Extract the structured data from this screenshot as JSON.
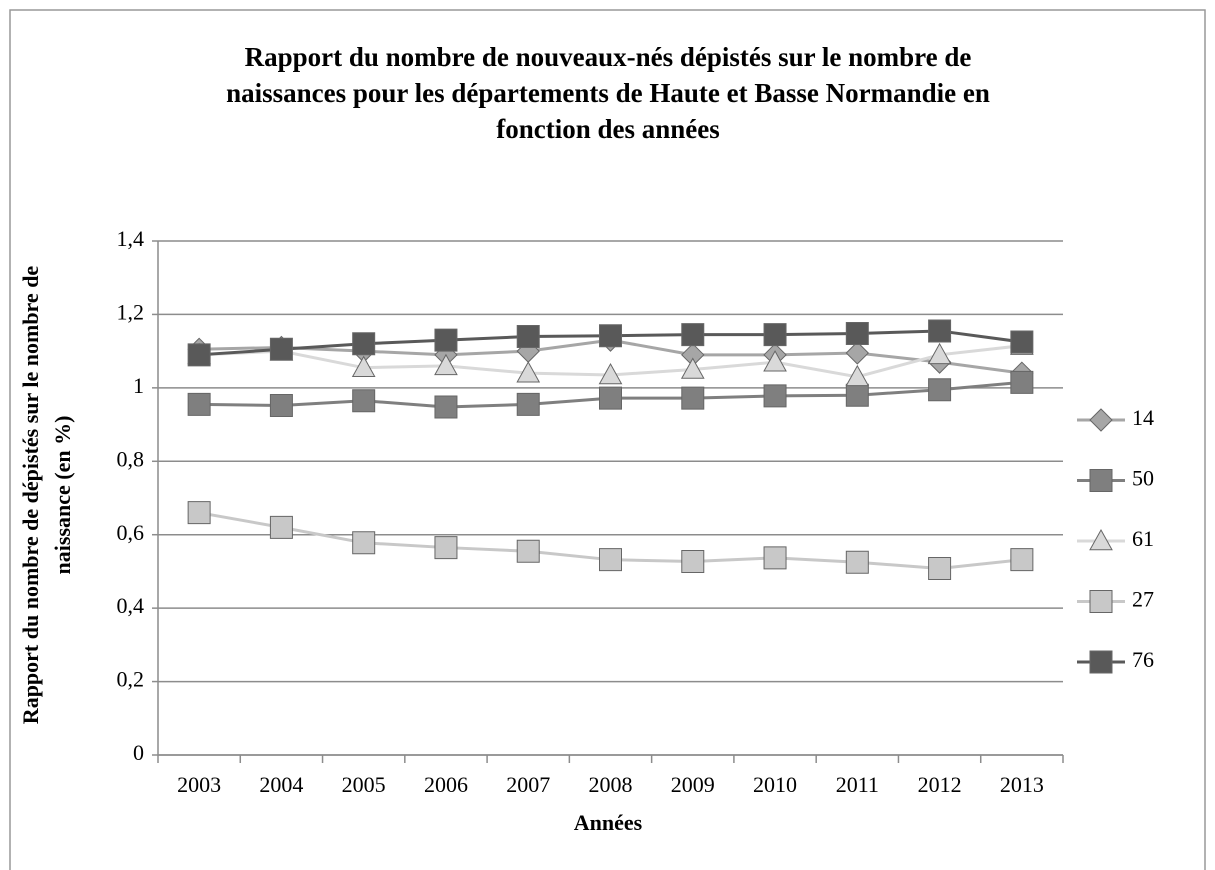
{
  "chart_data": {
    "type": "line",
    "title": [
      "Rapport du nombre de nouveaux-nés dépistés sur le nombre de",
      "naissances pour les départements de Haute et Basse Normandie en",
      "fonction des années"
    ],
    "x_label": "Années",
    "y_label": [
      "Rapport du nombre de dépistés sur le nombre de",
      "naissance (en %)"
    ],
    "categories": [
      "2003",
      "2004",
      "2005",
      "2006",
      "2007",
      "2008",
      "2009",
      "2010",
      "2011",
      "2012",
      "2013"
    ],
    "series": [
      {
        "name": "14",
        "color": "#a6a6a6",
        "marker": "diamond",
        "values": [
          1.105,
          1.11,
          1.1,
          1.09,
          1.1,
          1.13,
          1.09,
          1.09,
          1.095,
          1.07,
          1.04
        ]
      },
      {
        "name": "50",
        "color": "#7f7f7f",
        "marker": "square",
        "values": [
          0.955,
          0.952,
          0.965,
          0.948,
          0.955,
          0.972,
          0.972,
          0.978,
          0.98,
          0.995,
          1.015
        ]
      },
      {
        "name": "61",
        "color": "#d9d9d9",
        "marker": "triangle",
        "values": [
          1.09,
          1.1,
          1.055,
          1.06,
          1.04,
          1.035,
          1.05,
          1.07,
          1.03,
          1.09,
          1.115
        ]
      },
      {
        "name": "27",
        "color": "#c8c8c8",
        "marker": "square",
        "values": [
          0.66,
          0.62,
          0.578,
          0.565,
          0.555,
          0.532,
          0.527,
          0.537,
          0.525,
          0.508,
          0.532
        ]
      },
      {
        "name": "76",
        "color": "#595959",
        "marker": "square",
        "values": [
          1.09,
          1.105,
          1.12,
          1.13,
          1.14,
          1.142,
          1.145,
          1.145,
          1.148,
          1.155,
          1.125
        ]
      }
    ],
    "ylim": [
      0,
      1.4
    ],
    "yticks": [
      0,
      {
        "value": 0.2,
        "label": "0,2"
      },
      {
        "value": 0.4,
        "label": "0,4"
      },
      {
        "value": 0.6,
        "label": "0,6"
      },
      {
        "value": 0.8,
        "label": "0,8"
      },
      1,
      {
        "value": 1.2,
        "label": "1,2"
      },
      {
        "value": 1.4,
        "label": "1,4"
      }
    ],
    "grid": true,
    "legend": "right"
  }
}
